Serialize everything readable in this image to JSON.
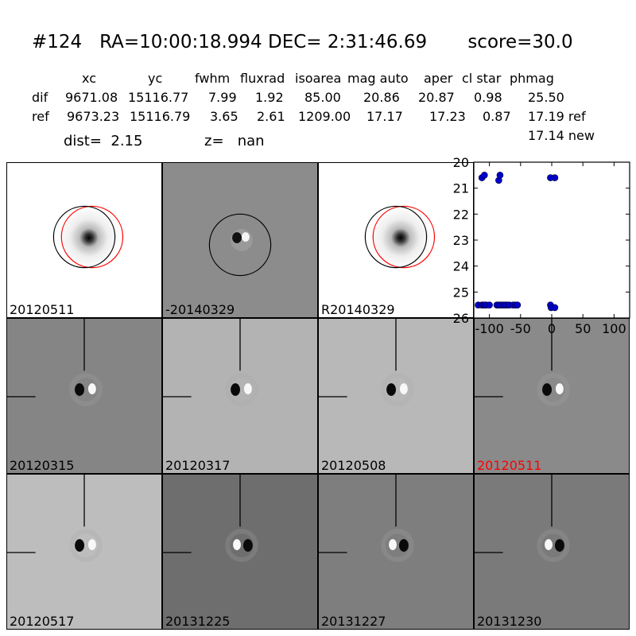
{
  "header": {
    "object_id": "#124",
    "ra": "RA=10:00:18.994",
    "dec": "DEC= 2:31:46.69",
    "score": "score=30.0"
  },
  "table": {
    "columns": [
      "xc",
      "yc",
      "fwhm",
      "fluxrad",
      "isoarea",
      "mag auto",
      "aper",
      "cl star",
      "phmag"
    ],
    "rows": [
      {
        "label": "dif",
        "values": [
          "9671.08",
          "15116.77",
          "7.99",
          "1.92",
          "85.00",
          "20.86",
          "20.87",
          "0.98",
          "25.50"
        ]
      },
      {
        "label": "ref",
        "values": [
          "9673.23",
          "15116.79",
          "3.65",
          "2.61",
          "1209.00",
          "17.17",
          "17.23",
          "0.87",
          "17.19 ref"
        ]
      }
    ],
    "phmag_new": "17.14 new",
    "dist": "dist=  2.15",
    "z": "z=   nan"
  },
  "panels": [
    {
      "label": "20120511",
      "style": "ref"
    },
    {
      "label": "-20140329",
      "style": "diff"
    },
    {
      "label": "R20140329",
      "style": "ref"
    },
    {
      "label": "20120315",
      "style": "epoch"
    },
    {
      "label": "20120317",
      "style": "epoch"
    },
    {
      "label": "20120508",
      "style": "epoch"
    },
    {
      "label": "20120511",
      "style": "epoch",
      "highlight": true
    },
    {
      "label": "20120517",
      "style": "epoch"
    },
    {
      "label": "20131225",
      "style": "epoch"
    },
    {
      "label": "20131227",
      "style": "epoch"
    },
    {
      "label": "20131230",
      "style": "epoch"
    }
  ],
  "colors": {
    "highlight_label": "#ff0000",
    "marker": "#0000cc",
    "circle_black": "#000000",
    "circle_red": "#ff0000"
  },
  "chart_data": {
    "type": "scatter",
    "title": "",
    "xlabel": "",
    "ylabel": "",
    "xlim": [
      -125,
      125
    ],
    "ylim": [
      26,
      20
    ],
    "y_inverted": true,
    "xticks": [
      "-100",
      "-50",
      "0",
      "50",
      "100"
    ],
    "yticks": [
      "20",
      "21",
      "22",
      "23",
      "24",
      "25",
      "26"
    ],
    "series": [
      {
        "x": [
          -118,
          -112,
          -110,
          -107,
          -105,
          -100,
          -88,
          -85,
          -82,
          -78,
          -75,
          -72,
          -68,
          -62,
          -58,
          -55,
          -2,
          -1,
          5,
          -112,
          -108,
          -85,
          -83,
          -2,
          5
        ],
        "y": [
          25.5,
          25.5,
          25.5,
          25.5,
          25.5,
          25.5,
          25.5,
          25.5,
          25.5,
          25.5,
          25.5,
          25.5,
          25.5,
          25.5,
          25.5,
          25.5,
          25.5,
          25.6,
          25.6,
          20.6,
          20.5,
          20.7,
          20.5,
          20.6,
          20.6
        ]
      }
    ]
  }
}
